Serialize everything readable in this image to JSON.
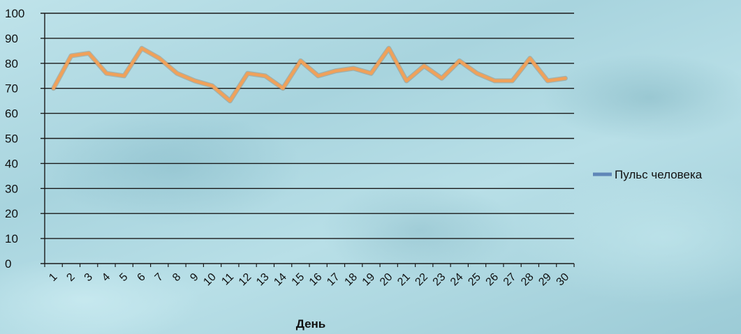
{
  "chart_data": {
    "type": "line",
    "title": "",
    "xlabel": "День",
    "ylabel": "",
    "ylim": [
      0,
      100
    ],
    "yticks": [
      0,
      10,
      20,
      30,
      40,
      50,
      60,
      70,
      80,
      90,
      100
    ],
    "grid": true,
    "legend": "right",
    "x": [
      1,
      2,
      3,
      4,
      5,
      6,
      7,
      8,
      9,
      10,
      11,
      12,
      13,
      14,
      15,
      16,
      17,
      18,
      19,
      20,
      21,
      22,
      23,
      24,
      25,
      26,
      27,
      28,
      29,
      30
    ],
    "series": [
      {
        "name": "Пульс человека",
        "color": "#f0a15a",
        "legend_color": "#5f86b8",
        "values": [
          70,
          83,
          84,
          76,
          75,
          86,
          82,
          76,
          73,
          71,
          65,
          76,
          75,
          70,
          81,
          75,
          77,
          78,
          76,
          86,
          73,
          79,
          74,
          81,
          76,
          73,
          73,
          82,
          73,
          74
        ]
      }
    ]
  }
}
